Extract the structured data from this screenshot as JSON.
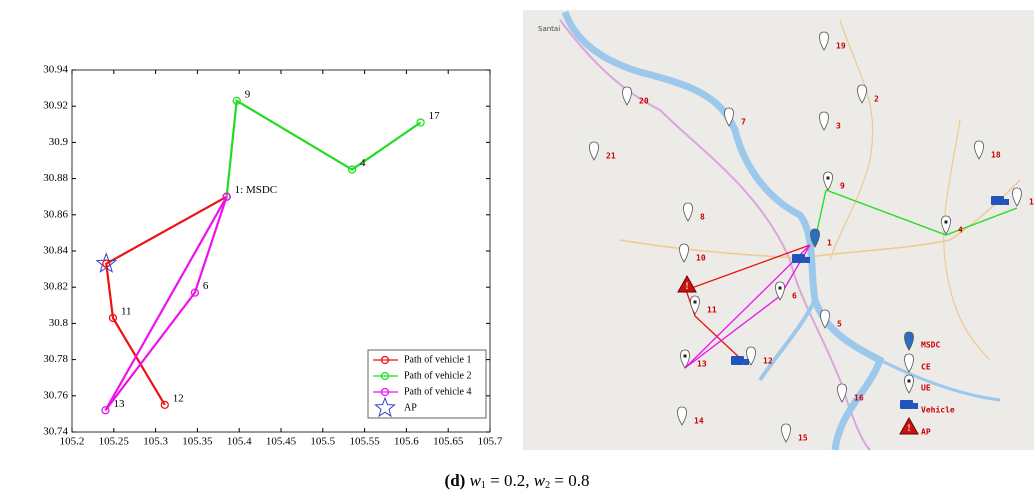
{
  "chart_data": {
    "type": "line",
    "xlim": [
      105.2,
      105.7
    ],
    "xticks": [
      105.2,
      105.25,
      105.3,
      105.35,
      105.4,
      105.45,
      105.5,
      105.55,
      105.6,
      105.65,
      105.7
    ],
    "ylim": [
      30.74,
      30.94
    ],
    "yticks": [
      30.74,
      30.76,
      30.78,
      30.8,
      30.82,
      30.84,
      30.86,
      30.88,
      30.9,
      30.92,
      30.94
    ],
    "legend": "lower right",
    "series": [
      {
        "name": "Path of vehicle 1",
        "color": "#ee1111",
        "marker": "circle",
        "x": [
          105.385,
          105.241,
          105.249,
          105.311
        ],
        "values": [
          30.87,
          30.833,
          30.803,
          30.755
        ]
      },
      {
        "name": "Path of vehicle 2",
        "color": "#22dd22",
        "marker": "circle",
        "x": [
          105.385,
          105.397,
          105.535,
          105.617
        ],
        "values": [
          30.87,
          30.923,
          30.885,
          30.911
        ]
      },
      {
        "name": "Path of vehicle 4",
        "color": "#ee11ee",
        "marker": "circle",
        "x": [
          105.385,
          105.347,
          105.24,
          105.385
        ],
        "values": [
          30.87,
          30.817,
          30.752,
          30.87
        ]
      },
      {
        "name": "AP",
        "color": "#3344cc",
        "marker": "star",
        "x": [
          105.241
        ],
        "values": [
          30.833
        ]
      }
    ],
    "annotations": [
      {
        "text": "9",
        "x": 105.397,
        "y": 30.923
      },
      {
        "text": "17",
        "x": 105.617,
        "y": 30.911
      },
      {
        "text": "4",
        "x": 105.535,
        "y": 30.885
      },
      {
        "text": "1: MSDC",
        "x": 105.385,
        "y": 30.87
      },
      {
        "text": "6",
        "x": 105.347,
        "y": 30.817
      },
      {
        "text": "11",
        "x": 105.249,
        "y": 30.803
      },
      {
        "text": "13",
        "x": 105.24,
        "y": 30.752
      },
      {
        "text": "12",
        "x": 105.311,
        "y": 30.755
      }
    ]
  },
  "map": {
    "town": "Santai",
    "nodes": [
      "19",
      "2",
      "20",
      "7",
      "3",
      "21",
      "18",
      "9",
      "1",
      "8",
      "4",
      "1",
      "10",
      "6",
      "11",
      "5",
      "13",
      "12",
      "16",
      "14",
      "15"
    ],
    "legend": [
      "MSDC",
      "CE",
      "UE",
      "Vehicle",
      "AP"
    ]
  },
  "caption": {
    "label": "(d)",
    "parts": [
      "w",
      "1",
      " = 0.2, ",
      "w",
      "2",
      " = 0.8"
    ]
  }
}
